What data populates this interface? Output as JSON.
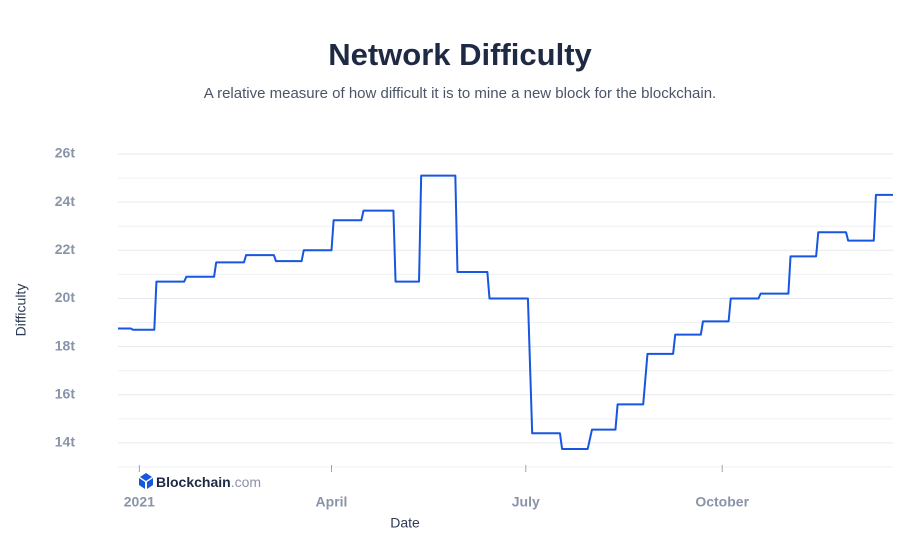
{
  "chart_data": {
    "type": "line",
    "title": "Network Difficulty",
    "subtitle": "A relative measure of how difficult it is to mine a new block for the blockchain.",
    "x_label": "Date",
    "y_label": "Difficulty",
    "x": [
      -10,
      -4,
      -3,
      7,
      8,
      21,
      22,
      35,
      36,
      49,
      50,
      63,
      64,
      76,
      77,
      90,
      91,
      104,
      105,
      119,
      120,
      131,
      132,
      148,
      149,
      163,
      164,
      182,
      184,
      197,
      198,
      210,
      212,
      223,
      224,
      236,
      238,
      250,
      251,
      263,
      264,
      276,
      277,
      290,
      291,
      304,
      305,
      317,
      318,
      331,
      332,
      344,
      345,
      353
    ],
    "series": [
      {
        "name": "Difficulty",
        "color": "#1656e0",
        "values": [
          18.75,
          18.75,
          18.7,
          18.7,
          20.7,
          20.7,
          20.9,
          20.9,
          21.5,
          21.5,
          21.8,
          21.8,
          21.55,
          21.55,
          22.0,
          22.0,
          23.25,
          23.25,
          23.65,
          23.65,
          20.7,
          20.7,
          25.1,
          25.1,
          21.1,
          21.1,
          20.0,
          20.0,
          14.4,
          14.4,
          13.75,
          13.75,
          14.55,
          14.55,
          15.6,
          15.6,
          17.7,
          17.7,
          18.5,
          18.5,
          19.05,
          19.05,
          20.0,
          20.0,
          20.2,
          20.2,
          21.75,
          21.75,
          22.75,
          22.75,
          22.4,
          22.4,
          24.3,
          24.3
        ]
      }
    ],
    "xlim": [
      -10,
      353
    ],
    "xticks": [
      {
        "value": 0,
        "label": "2021"
      },
      {
        "value": 90,
        "label": "April"
      },
      {
        "value": 181,
        "label": "July"
      },
      {
        "value": 273,
        "label": "October"
      }
    ],
    "ylim": [
      13,
      26
    ],
    "yticks": [
      {
        "value": 14,
        "label": "14t"
      },
      {
        "value": 16,
        "label": "16t"
      },
      {
        "value": 18,
        "label": "18t"
      },
      {
        "value": 20,
        "label": "20t"
      },
      {
        "value": 22,
        "label": "22t"
      },
      {
        "value": 24,
        "label": "24t"
      },
      {
        "value": 26,
        "label": "26t"
      }
    ],
    "minor_yticks": [
      13,
      15,
      17,
      19,
      21,
      23,
      25
    ],
    "grid": true
  },
  "brand": {
    "name": "Blockchain",
    "suffix": ".com"
  }
}
